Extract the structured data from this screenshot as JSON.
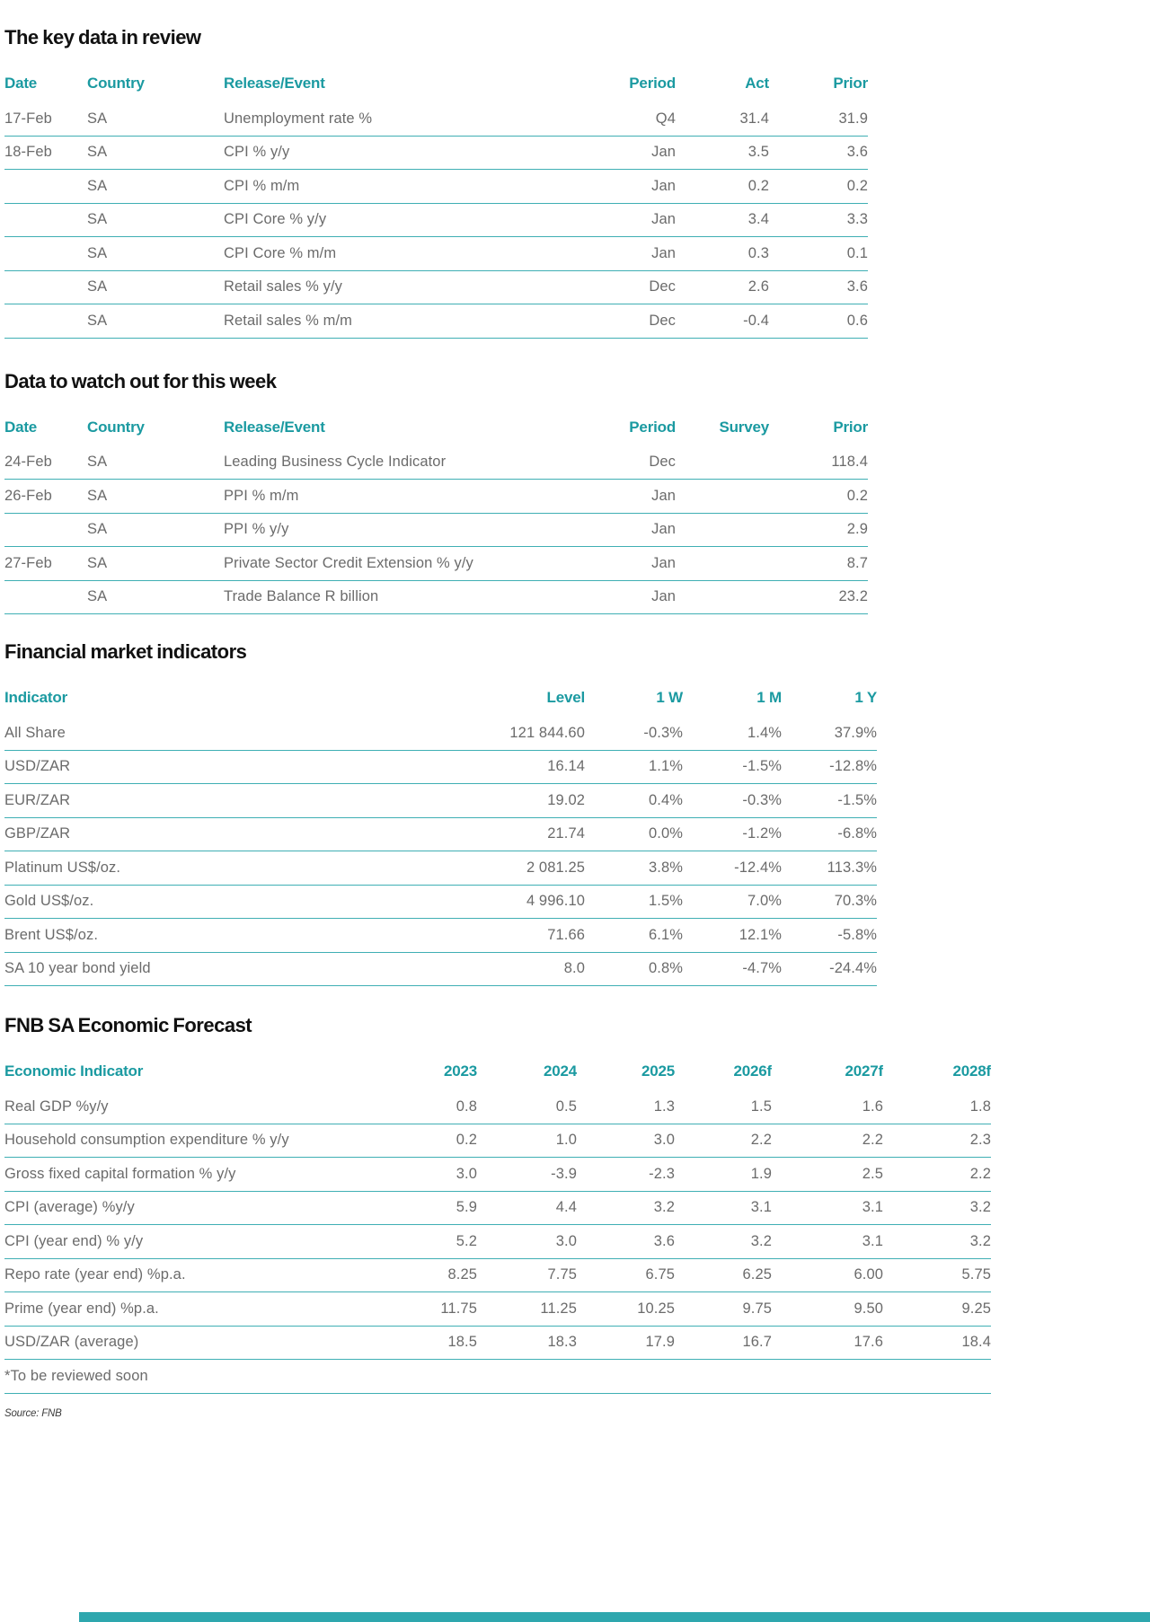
{
  "document": {
    "sections": [
      {
        "title": "The key data in review",
        "type": "events",
        "columns": [
          "Date",
          "Country",
          "Release/Event",
          "Period",
          "Act",
          "Prior"
        ],
        "rows": [
          [
            "17-Feb",
            "SA",
            "Unemployment rate %",
            "Q4",
            "31.4",
            "31.9"
          ],
          [
            "18-Feb",
            "SA",
            "CPI % y/y",
            "Jan",
            "3.5",
            "3.6"
          ],
          [
            "",
            "SA",
            "CPI % m/m",
            "Jan",
            "0.2",
            "0.2"
          ],
          [
            "",
            "SA",
            "CPI Core % y/y",
            "Jan",
            "3.4",
            "3.3"
          ],
          [
            "",
            "SA",
            "CPI Core % m/m",
            "Jan",
            "0.3",
            "0.1"
          ],
          [
            "",
            "SA",
            "Retail sales % y/y",
            "Dec",
            "2.6",
            "3.6"
          ],
          [
            "",
            "SA",
            "Retail sales % m/m",
            "Dec",
            "-0.4",
            "0.6"
          ]
        ]
      },
      {
        "title": "Data to watch out for this week",
        "type": "events",
        "columns": [
          "Date",
          "Country",
          "Release/Event",
          "Period",
          "Survey",
          "Prior"
        ],
        "rows": [
          [
            "24-Feb",
            "SA",
            "Leading Business Cycle Indicator",
            "Dec",
            "",
            "118.4"
          ],
          [
            "26-Feb",
            "SA",
            "PPI % m/m",
            "Jan",
            "",
            "0.2"
          ],
          [
            "",
            "SA",
            "PPI % y/y",
            "Jan",
            "",
            "2.9"
          ],
          [
            "27-Feb",
            "SA",
            "Private Sector Credit Extension % y/y",
            "Jan",
            "",
            "8.7"
          ],
          [
            "",
            "SA",
            "Trade Balance R billion",
            "Jan",
            "",
            "23.2"
          ]
        ]
      },
      {
        "title": "Financial market indicators",
        "type": "market",
        "columns": [
          "Indicator",
          "Level",
          "1 W",
          "1 M",
          "1 Y"
        ],
        "rows": [
          [
            "All Share",
            "121 844.60",
            "-0.3%",
            "1.4%",
            "37.9%"
          ],
          [
            "USD/ZAR",
            "16.14",
            "1.1%",
            "-1.5%",
            "-12.8%"
          ],
          [
            "EUR/ZAR",
            "19.02",
            "0.4%",
            "-0.3%",
            "-1.5%"
          ],
          [
            "GBP/ZAR",
            "21.74",
            "0.0%",
            "-1.2%",
            "-6.8%"
          ],
          [
            "Platinum US$/oz.",
            "2 081.25",
            "3.8%",
            "-12.4%",
            "113.3%"
          ],
          [
            "Gold US$/oz.",
            "4 996.10",
            "1.5%",
            "7.0%",
            "70.3%"
          ],
          [
            "Brent US$/oz.",
            "71.66",
            "6.1%",
            "12.1%",
            "-5.8%"
          ],
          [
            "SA 10 year bond yield",
            "8.0",
            "0.8%",
            "-4.7%",
            "-24.4%"
          ]
        ]
      },
      {
        "title": "FNB SA Economic Forecast",
        "type": "forecast",
        "columns": [
          "Economic Indicator",
          "2023",
          "2024",
          "2025",
          "2026f",
          "2027f",
          "2028f"
        ],
        "rows": [
          [
            "Real GDP %y/y",
            "0.8",
            "0.5",
            "1.3",
            "1.5",
            "1.6",
            "1.8"
          ],
          [
            "Household consumption expenditure % y/y",
            "0.2",
            "1.0",
            "3.0",
            "2.2",
            "2.2",
            "2.3"
          ],
          [
            "Gross fixed capital formation % y/y",
            "3.0",
            "-3.9",
            "-2.3",
            "1.9",
            "2.5",
            "2.2"
          ],
          [
            "CPI (average) %y/y",
            "5.9",
            "4.4",
            "3.2",
            "3.1",
            "3.1",
            "3.2"
          ],
          [
            "CPI (year end) % y/y",
            "5.2",
            "3.0",
            "3.6",
            "3.2",
            "3.1",
            "3.2"
          ],
          [
            "Repo rate (year end) %p.a.",
            "8.25",
            "7.75",
            "6.75",
            "6.25",
            "6.00",
            "5.75"
          ],
          [
            "Prime (year end) %p.a.",
            "11.75",
            "11.25",
            "10.25",
            "9.75",
            "9.50",
            "9.25"
          ],
          [
            "USD/ZAR (average)",
            "18.5",
            "18.3",
            "17.9",
            "16.7",
            "17.6",
            "18.4"
          ]
        ],
        "footnote": "*To be reviewed soon"
      }
    ],
    "source": "Source: FNB",
    "colors": {
      "accent_teal": "#1b9aa1",
      "divider_teal": "#3fafb4",
      "footer_bar_teal": "#2ea7ae",
      "body_gray": "#6b6b6b",
      "title_black": "#111111"
    }
  }
}
